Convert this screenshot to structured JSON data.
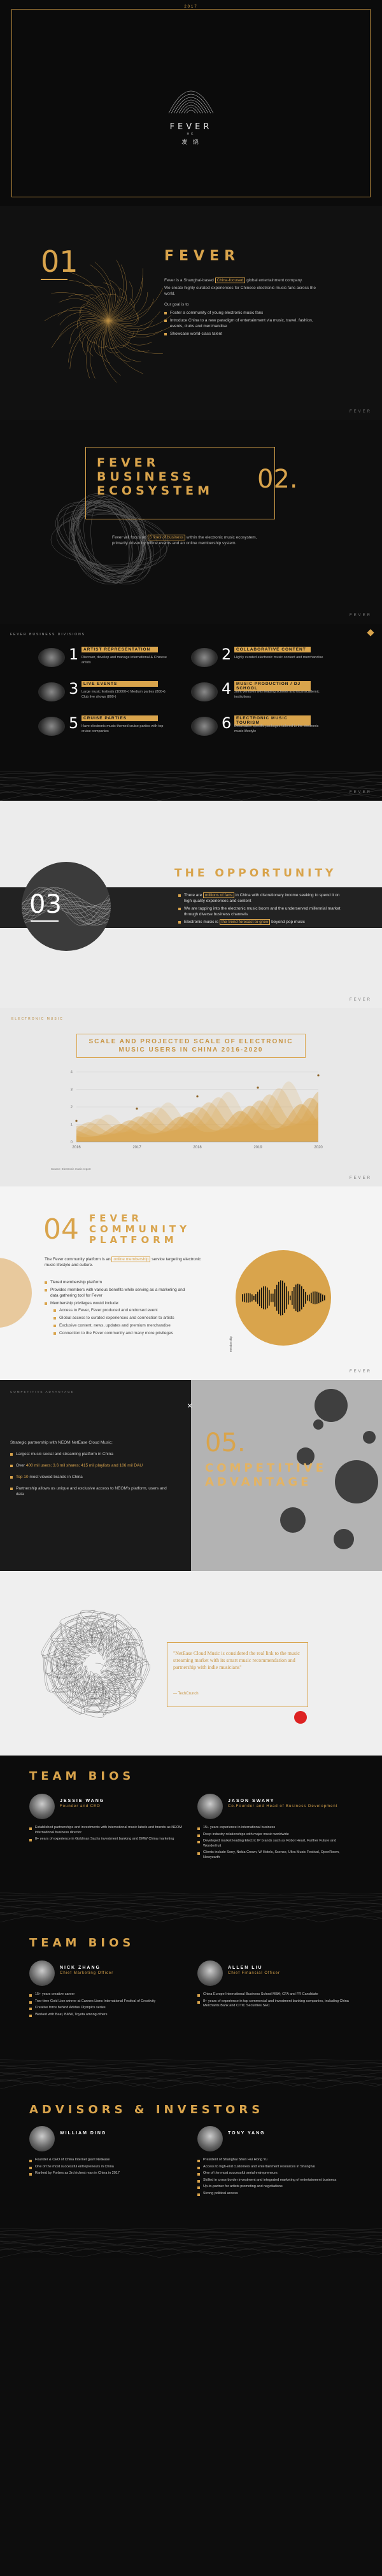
{
  "cover": {
    "year": "2017",
    "brand": "FEVER",
    "sub": "HK",
    "cn": "发 烧"
  },
  "about": {
    "num": "01",
    "title": "FEVER",
    "intro_a": "Fever is a Shanghai-based ",
    "intro_hl": "China-focused",
    "intro_b": " global entertainment company.",
    "intro2": "We create highly curated experiences for Chinese electronic music fans across the world.",
    "goal_head": "Our goal is to",
    "goals": [
      "Foster a community of young electronic music fans",
      "Introduce China to a new paradigm of entertainment via music, travel, fashion, events, clubs and merchandise",
      "Showcase world-class talent"
    ],
    "foot": "FEVER"
  },
  "ecosystem": {
    "title_l1": "FEVER",
    "title_l2": "BUSINESS",
    "title_l3": "ECOSYSTEM",
    "num": "02.",
    "desc_a": "Fever will focus on ",
    "desc_hl": "6 lines of business",
    "desc_b": " within the electronic music ecosystem, primarily driven by offline events and an online membership system.",
    "foot": "FEVER"
  },
  "lines": {
    "header": "FEVER BUSINESS DIVISIONS",
    "items": [
      {
        "n": "1",
        "t": "ARTIST REPRESENTATION",
        "d": "Discover, develop and manage international & Chinese artists"
      },
      {
        "n": "2",
        "t": "COLLABORATIVE CONTENT",
        "d": "Highly curated electronic music content and merchandise"
      },
      {
        "n": "3",
        "t": "LIVE EVENTS",
        "d": "Large music festivals (10000+) Medium parties (800+) Club live shows (800-)"
      },
      {
        "n": "4",
        "t": "MUSIC PRODUCTION / DJ SCHOOL",
        "d": "Joint ventures with leading schools and local academic institutions"
      },
      {
        "n": "5",
        "t": "CRUISE PARTIES",
        "d": "Have electronic music themed cruise parties with top cruise companies"
      },
      {
        "n": "6",
        "t": "ELECTRONIC MUSIC TOURISM",
        "d": "Destination specific packages tailored to the electronic music lifestyle"
      }
    ],
    "foot": "FEVER"
  },
  "opportunity": {
    "num": "03",
    "title": "THE OPPORTUNITY",
    "points": [
      {
        "a": "There are ",
        "hl": "millions of fans",
        "b": " in China with discretionary income seeking to spend it on high quality experiences and content"
      },
      {
        "a": "We are tapping into the electronic music boom and the underserved millennial market through diverse business channels",
        "hl": "",
        "b": ""
      },
      {
        "a": "Electronic music is ",
        "hl": "the trend forecast to grow",
        "b": " beyond pop music"
      }
    ],
    "foot": "FEVER"
  },
  "chart": {
    "header": "ELECTRONIC MUSIC",
    "title_l1": "SCALE AND PROJECTED SCALE OF ELECTRONIC",
    "title_l2": "MUSIC USERS IN CHINA 2016-2020",
    "caption": "Source: Electronic music report",
    "foot": "FEVER"
  },
  "chart_data": {
    "type": "area",
    "x": [
      2016,
      2017,
      2018,
      2019,
      2020
    ],
    "ylim": [
      0,
      4
    ],
    "y_ticks": [
      "4",
      "3",
      "2",
      "1",
      "0"
    ],
    "x_ticks": [
      "2016",
      "2017",
      "2018",
      "2019",
      "2020"
    ],
    "series": [
      {
        "values": [
          1.2,
          1.9,
          2.6,
          3.1,
          3.8
        ],
        "color": "#d9a44c"
      }
    ]
  },
  "community": {
    "num": "04",
    "title_l1": "FEVER",
    "title_l2": "COMMUNITY",
    "title_l3": "PLATFORM",
    "intro_a": "The Fever community platform is an ",
    "intro_hl": "online membership",
    "intro_b": " service targeting electronic music lifestyle and culture.",
    "items": [
      "Tiered membership platform",
      "Provides members with various benefits while serving as a marketing and data gathering tool for Fever",
      "Membership privileges would include:"
    ],
    "sub_items": [
      "Access to Fever, Fever produced and endorsed event",
      "Global access to curated experiences and connection to artists",
      "Exclusive content, news, updates and premium merchandise",
      "Connection to the Fever community and many more privileges"
    ],
    "side_label": "Membership",
    "foot": "FEVER"
  },
  "competitive": {
    "header": "COMPETITIVE ADVANTAGE",
    "intro": "Strategic partnership with NEOM NetEase Cloud Music:",
    "items": [
      {
        "a": "Largest music social and streaming platform in China",
        "hl": ""
      },
      {
        "a": "Over ",
        "hl": "400 mil users; 3.6 mil shares; 415 mil playlists and 106 mil DAU",
        "b": ""
      },
      {
        "a": "",
        "hl": "Top 10",
        "b": " most viewed brands in China"
      },
      {
        "a": "Partnership allows us unique and exclusive access to NEOM's platform, users and data",
        "hl": ""
      }
    ],
    "num": "05.",
    "title_l1": "COMPETITIVE",
    "title_l2": "ADVANTAGE"
  },
  "quote": {
    "text": "\"NetEase Cloud Music is considered the real link to the music streaming market with its smart music recommendation and partnership with indie musicians\"",
    "author": "— TechCrunch"
  },
  "bios1": {
    "title": "TEAM BIOS",
    "people": [
      {
        "name": "JESSIE WANG",
        "role": "Founder and CEO",
        "items": [
          "Established partnerships and investments with international music labels and brands as NEOM international business director",
          "8+ years of experience in Goldman Sachs investment banking and BMW China marketing"
        ]
      },
      {
        "name": "JASON SWARY",
        "role": "Co-Founder and Head of Business Development",
        "items": [
          "15+ years experience in international business",
          "Deep industry relationships with major music worldwide",
          "Developed market leading Electric IP brands such as Robot Heart, Further Future and Wonderfruit",
          "Clients include Sony, Nokia Crown, W Hotels, Ssense, Ultra Music Festival, OpenRoom, Newyearth"
        ]
      }
    ]
  },
  "bios2": {
    "title": "TEAM BIOS",
    "people": [
      {
        "name": "NICK ZHANG",
        "role": "Chief Marketing Officer",
        "items": [
          "15+ years creative career",
          "Two-time Gold Lion winner at Cannes Lions International Festival of Creativity",
          "Creative force behind Adidas Olympics series",
          "Worked with Beat, BMW, Toyota among others"
        ]
      },
      {
        "name": "ALLEN LIU",
        "role": "Chief Financial Officer",
        "items": [
          "China Europe International Business School MBA; CFA and FR Candidate",
          "8+ years of experience in top commercial and investment banking companies, including China Merchants Bank and CITIC Securities SEC"
        ]
      }
    ]
  },
  "advisors": {
    "title": "ADVISORS & INVESTORS",
    "people": [
      {
        "name": "WILLIAM DING",
        "role": "",
        "items": [
          "Founder & CEO of China Internet giant NetEase",
          "One of the most successful entrepreneurs in China",
          "Ranked by Forbes as 3rd richest man in China in 2017"
        ]
      },
      {
        "name": "TONY YANG",
        "role": "",
        "items": [
          "President of Shanghai Shen Hui Hong Yu",
          "Access to high-end customers and entertainment resources in Shanghai",
          "One of the most successful serial entrepreneurs",
          "Skilled in cross-border investment and integrated marketing of entertainment business",
          "Up-to-partner for artists promoting and negotiations",
          "Strong political access"
        ]
      }
    ]
  }
}
